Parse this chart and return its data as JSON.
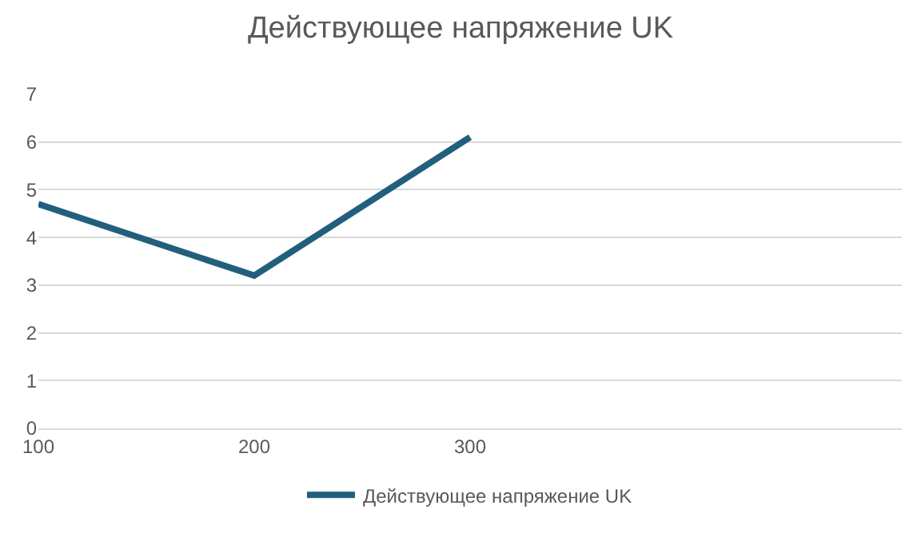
{
  "chart_data": {
    "type": "line",
    "title": "Действующее напряжение UK",
    "categories": [
      "100",
      "200",
      "300",
      null,
      null
    ],
    "series": [
      {
        "name": "Действующее напряжение UK",
        "color": "#215f7d",
        "values": [
          4.7,
          3.2,
          6.1,
          null,
          null
        ]
      }
    ],
    "ylim": [
      0,
      7
    ],
    "yticks": [
      0,
      1,
      2,
      3,
      4,
      5,
      6,
      7
    ],
    "grid": "y",
    "legend": "bottom",
    "marker": "none",
    "line_style": "solid"
  }
}
